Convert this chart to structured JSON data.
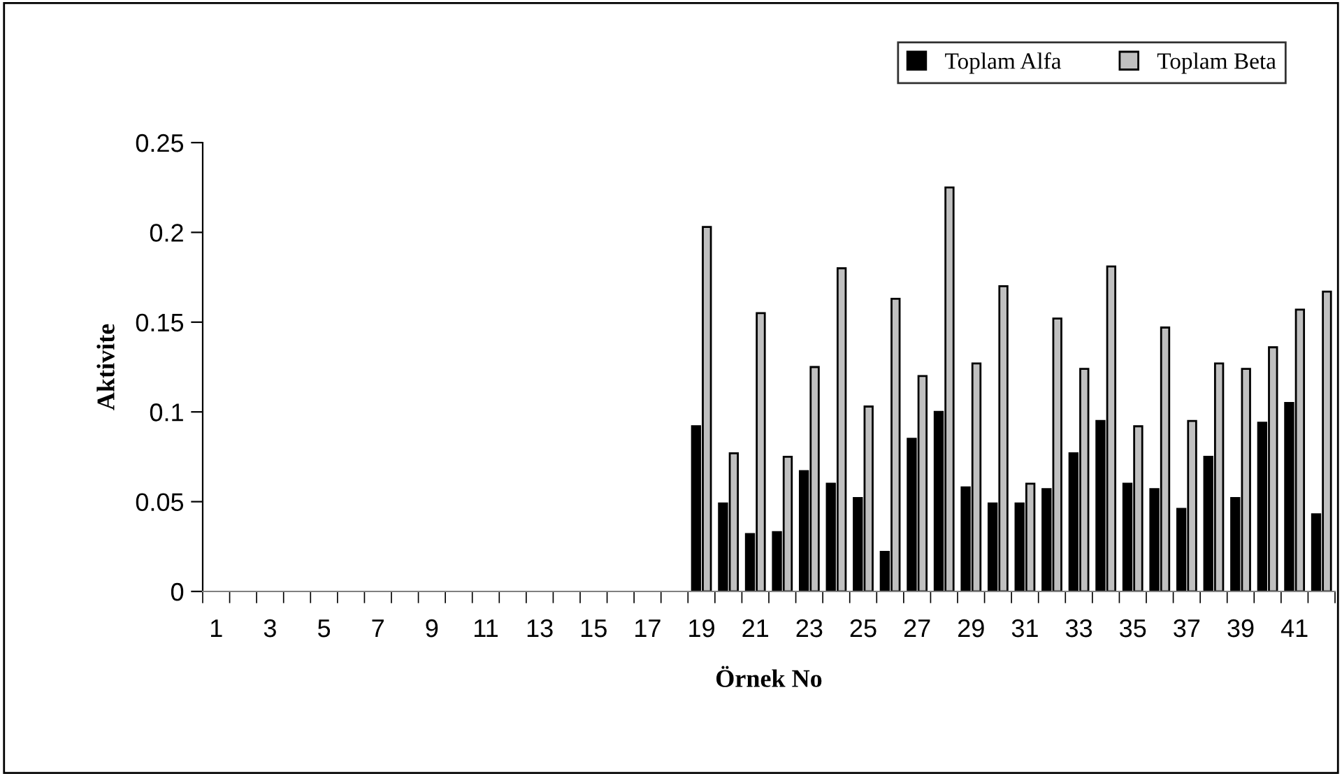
{
  "chart_data": {
    "type": "bar",
    "xlabel": "Örnek No",
    "ylabel": "Aktivite",
    "categories": [
      "1",
      null,
      "3",
      null,
      "5",
      null,
      "7",
      null,
      "9",
      null,
      "11",
      null,
      "13",
      null,
      "15",
      null,
      "17",
      null,
      "19",
      null,
      "21",
      null,
      "23",
      null,
      "25",
      null,
      "27",
      null,
      "29",
      null,
      "31",
      null,
      "33",
      null,
      "35",
      null,
      "37",
      null,
      "39",
      null,
      "41",
      null
    ],
    "series": [
      {
        "name": "Toplam Alfa",
        "color": "#000000",
        "values": [
          null,
          null,
          null,
          null,
          null,
          null,
          null,
          null,
          null,
          null,
          null,
          null,
          null,
          null,
          null,
          null,
          null,
          null,
          0.092,
          0.049,
          0.032,
          0.033,
          0.067,
          0.06,
          0.052,
          0.022,
          0.085,
          0.1,
          0.058,
          0.049,
          0.049,
          0.057,
          0.077,
          0.095,
          0.06,
          0.057,
          0.046,
          0.075,
          0.052,
          0.094,
          0.105,
          0.043
        ]
      },
      {
        "name": "Toplam Beta",
        "color": "#c0c0c0",
        "values": [
          null,
          null,
          null,
          null,
          null,
          null,
          null,
          null,
          null,
          null,
          null,
          null,
          null,
          null,
          null,
          null,
          null,
          null,
          0.203,
          0.077,
          0.155,
          0.075,
          0.125,
          0.18,
          0.103,
          0.163,
          0.12,
          0.225,
          0.127,
          0.17,
          0.06,
          0.152,
          0.124,
          0.181,
          0.092,
          0.147,
          0.095,
          0.127,
          0.124,
          0.136,
          0.157,
          0.167
        ]
      }
    ],
    "ylim": [
      0,
      0.25
    ],
    "yticks": [
      0,
      0.05,
      0.1,
      0.15,
      0.2,
      0.25
    ],
    "grid": false,
    "legend": "top right"
  }
}
